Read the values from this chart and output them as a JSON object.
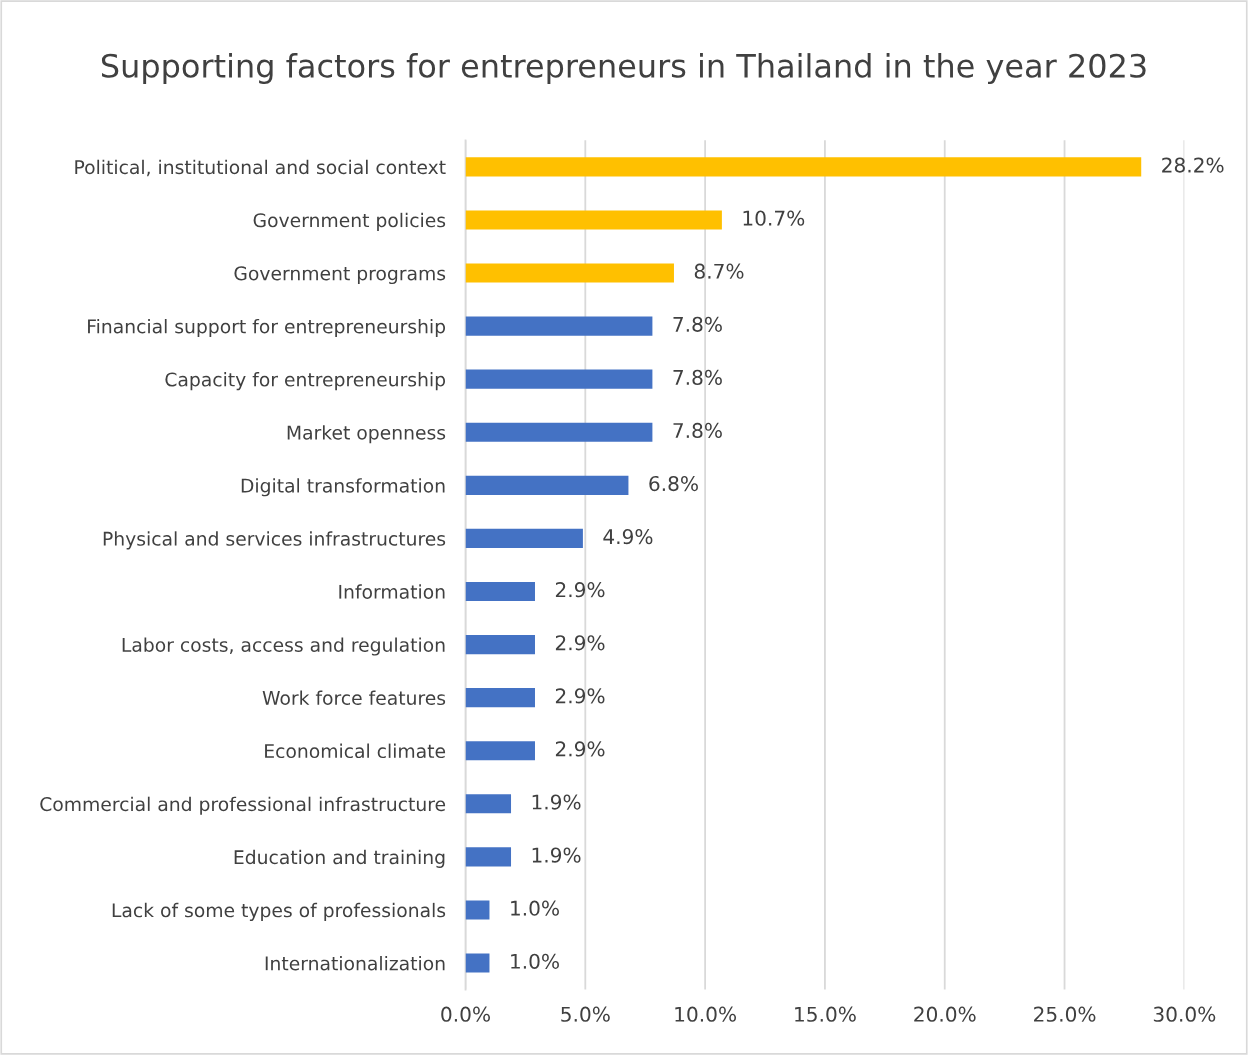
{
  "chart_data": {
    "type": "bar",
    "orientation": "horizontal",
    "title": "Supporting factors for entrepreneurs in Thailand in the year 2023",
    "categories": [
      "Political, institutional and social context",
      "Government policies",
      "Government programs",
      "Financial support for entrepreneurship",
      "Capacity for entrepreneurship",
      "Market openness",
      "Digital transformation",
      "Physical and services infrastructures",
      "Information",
      "Labor costs, access and regulation",
      "Work force features",
      "Economical climate",
      "Commercial and professional infrastructure",
      "Education and training",
      "Lack of some types of professionals",
      "Internationalization"
    ],
    "values": [
      28.2,
      10.7,
      8.7,
      7.8,
      7.8,
      7.8,
      6.8,
      4.9,
      2.9,
      2.9,
      2.9,
      2.9,
      1.9,
      1.9,
      1.0,
      1.0
    ],
    "value_labels": [
      "28.2%",
      "10.7%",
      "8.7%",
      "7.8%",
      "7.8%",
      "7.8%",
      "6.8%",
      "4.9%",
      "2.9%",
      "2.9%",
      "2.9%",
      "2.9%",
      "1.9%",
      "1.9%",
      "1.0%",
      "1.0%"
    ],
    "colors": [
      "#ffc000",
      "#ffc000",
      "#ffc000",
      "#4472c4",
      "#4472c4",
      "#4472c4",
      "#4472c4",
      "#4472c4",
      "#4472c4",
      "#4472c4",
      "#4472c4",
      "#4472c4",
      "#4472c4",
      "#4472c4",
      "#4472c4",
      "#4472c4"
    ],
    "xlim": [
      0,
      30
    ],
    "xticks": [
      {
        "value": 0,
        "label": "0.0%"
      },
      {
        "value": 5,
        "label": "5.0%"
      },
      {
        "value": 10,
        "label": "10.0%"
      },
      {
        "value": 15,
        "label": "15.0%"
      },
      {
        "value": 20,
        "label": "20.0%"
      },
      {
        "value": 25,
        "label": "25.0%"
      },
      {
        "value": 30,
        "label": "30.0%"
      }
    ],
    "grid": "x",
    "legend": false
  }
}
